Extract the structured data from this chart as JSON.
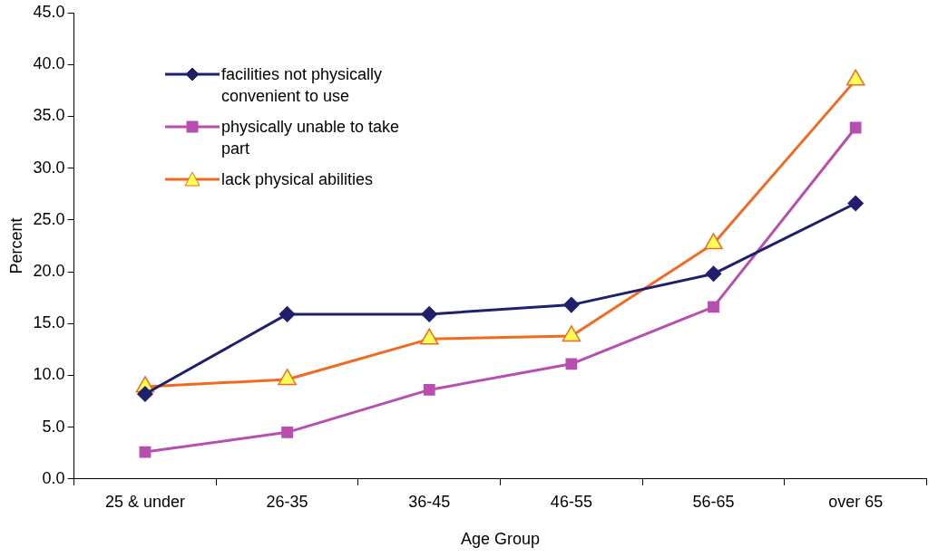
{
  "chart_data": {
    "type": "line",
    "xlabel": "Age Group",
    "ylabel": "Percent",
    "categories": [
      "25 & under",
      "26-35",
      "36-45",
      "46-55",
      "56-65",
      "over 65"
    ],
    "series": [
      {
        "name": "facilities not physically convenient to use",
        "color": "#1f1f6e",
        "marker": "diamond",
        "values": [
          8.2,
          15.9,
          15.9,
          16.8,
          19.8,
          26.6
        ]
      },
      {
        "name": "physically unable to take part",
        "color": "#b84fb0",
        "marker": "square",
        "values": [
          2.6,
          4.5,
          8.6,
          11.1,
          16.6,
          33.9
        ]
      },
      {
        "name": "lack physical abilities",
        "color": "#f26a21",
        "marker": "triangle",
        "values": [
          8.9,
          9.6,
          13.5,
          13.8,
          22.7,
          38.5
        ]
      }
    ],
    "ylim": [
      0,
      45
    ],
    "yticks": [
      {
        "value": 0,
        "label": "0.0"
      },
      {
        "value": 5,
        "label": "5.0"
      },
      {
        "value": 10,
        "label": "10.0"
      },
      {
        "value": 15,
        "label": "15.0"
      },
      {
        "value": 20,
        "label": "20.0"
      },
      {
        "value": 25,
        "label": "25.0"
      },
      {
        "value": 30,
        "label": "30.0"
      },
      {
        "value": 35,
        "label": "35.0"
      },
      {
        "value": 40,
        "label": "40.0"
      },
      {
        "value": 45,
        "label": "45.0"
      }
    ],
    "grid": false,
    "legend": "top left",
    "line_style": "solid"
  }
}
